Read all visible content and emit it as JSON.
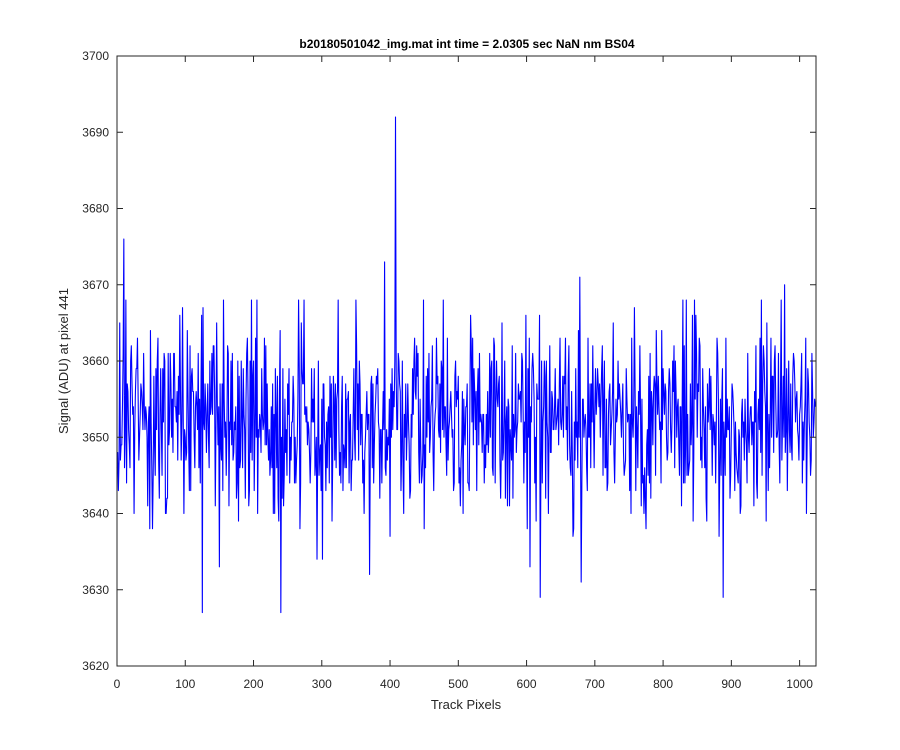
{
  "chart_data": {
    "type": "line",
    "title": "b20180501042_img.mat int time = 2.0305 sec  NaN nm BS04",
    "xlabel": "Track Pixels",
    "ylabel": "Signal (ADU) at pixel 441",
    "xlim": [
      0,
      1024
    ],
    "ylim": [
      3620,
      3700
    ],
    "xticks": [
      0,
      100,
      200,
      300,
      400,
      500,
      600,
      700,
      800,
      900,
      1000
    ],
    "yticks": [
      3620,
      3630,
      3640,
      3650,
      3660,
      3670,
      3680,
      3690,
      3700
    ],
    "grid": false,
    "series": [
      {
        "color": "#0000ff",
        "noise_summary": {
          "mean": 3652,
          "min": 3627,
          "max": 3692,
          "n_points": 1024
        },
        "x": [
          0,
          4,
          10,
          11,
          25,
          60,
          125,
          150,
          175,
          205,
          240,
          290,
          370,
          392,
          400,
          408,
          412,
          430,
          470,
          515,
          540,
          558,
          605,
          620,
          678,
          708,
          760,
          812,
          888,
          945,
          978,
          1020
        ],
        "values": [
          3646,
          3665,
          3676,
          3646,
          3640,
          3663,
          3627,
          3633,
          3642,
          3668,
          3627,
          3645,
          3632,
          3673,
          3637,
          3692,
          3661,
          3643,
          3658,
          3644,
          3646,
          3654,
          3633,
          3629,
          3671,
          3650,
          3643,
          3648,
          3629,
          3645,
          3670,
          3650
        ]
      }
    ]
  }
}
